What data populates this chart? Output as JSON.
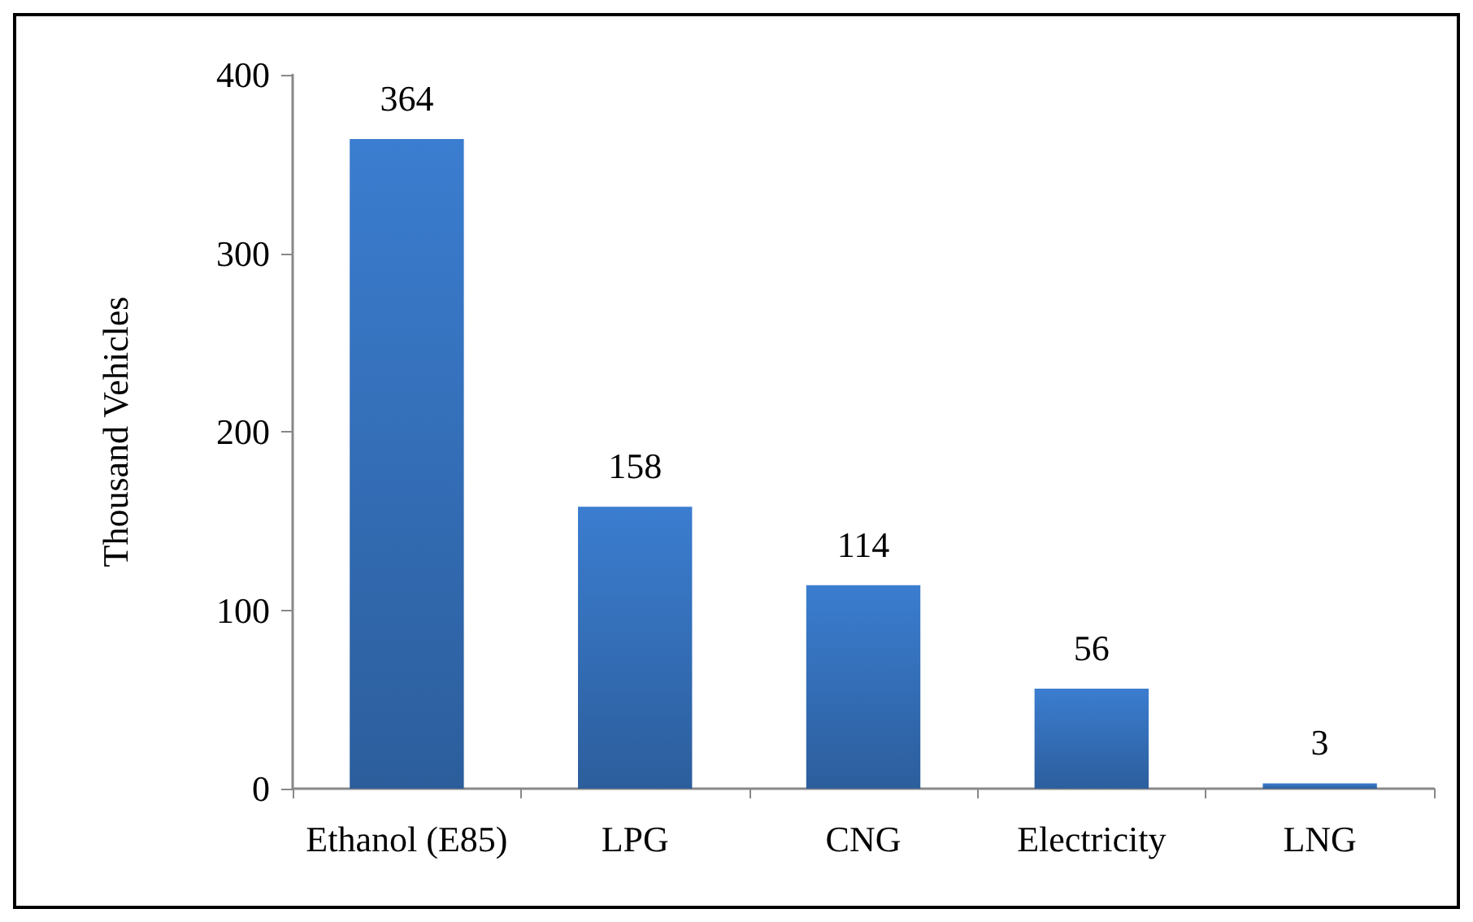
{
  "chart_data": {
    "type": "bar",
    "ylabel": "Thousand Vehicles",
    "categories": [
      "Ethanol (E85)",
      "LPG",
      "CNG",
      "Electricity",
      "LNG"
    ],
    "values": [
      364,
      158,
      114,
      56,
      3
    ],
    "color": "#3b7dd0",
    "ylim": [
      0,
      400
    ],
    "yticks": [
      0,
      100,
      200,
      300,
      400
    ],
    "grid": false,
    "data_labels": true
  }
}
